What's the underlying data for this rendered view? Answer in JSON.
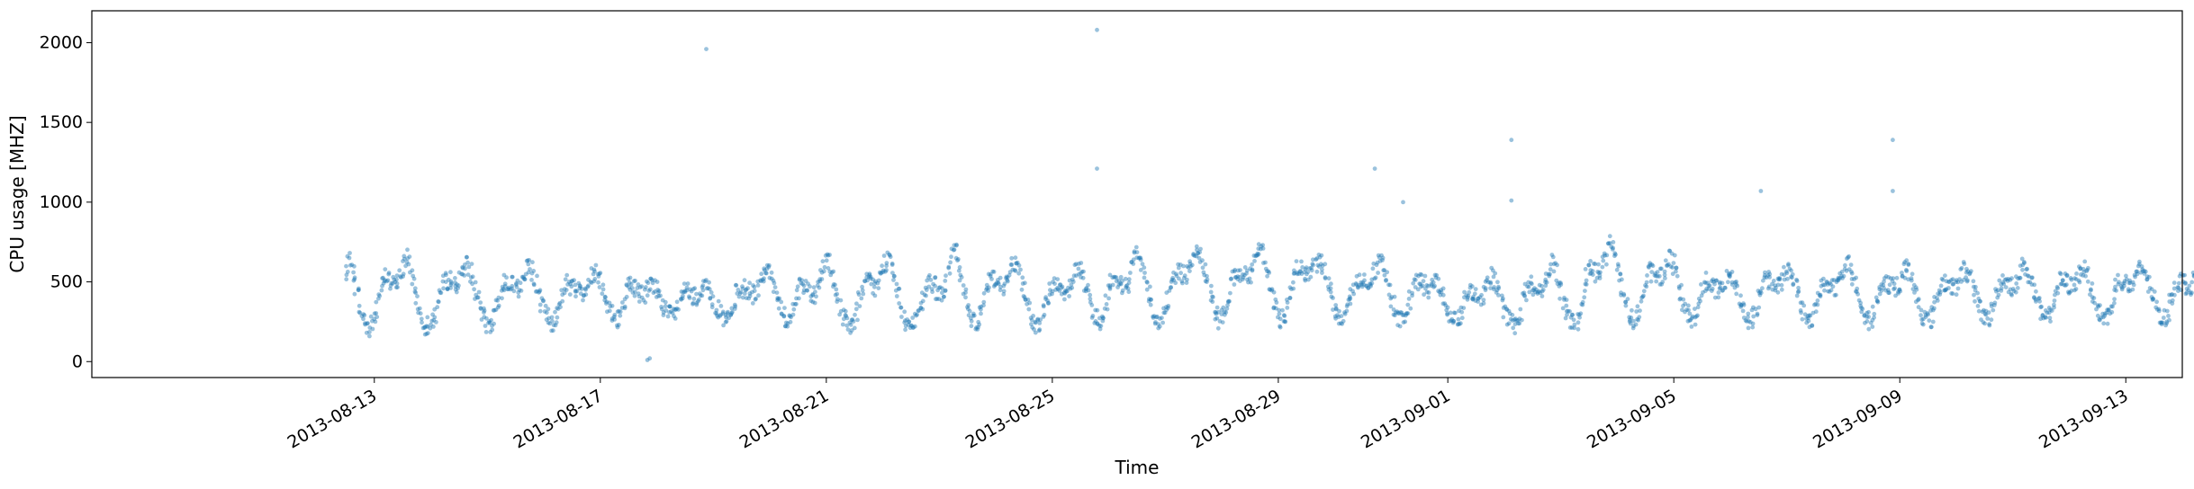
{
  "chart_data": {
    "type": "scatter",
    "title": "",
    "xlabel": "Time",
    "ylabel": "CPU usage [MHZ]",
    "xlim": [
      "2013-08-08",
      "2013-09-14"
    ],
    "ylim": [
      -100,
      2200
    ],
    "x_ticks": [
      "2013-08-13",
      "2013-08-17",
      "2013-08-21",
      "2013-08-25",
      "2013-08-29",
      "2013-09-01",
      "2013-09-05",
      "2013-09-09",
      "2013-09-13"
    ],
    "y_ticks": [
      0,
      500,
      1000,
      1500,
      2000
    ],
    "grid": false,
    "legend": "none",
    "marker_color": "#1f77b4",
    "marker_alpha": 0.45,
    "series_sampling": "hourly",
    "series_start": "2013-08-12 12:00",
    "series": [
      {
        "values": [
          540,
          600,
          660,
          560,
          480,
          420,
          330,
          290,
          250,
          230,
          210,
          240,
          280,
          340,
          420,
          500,
          530,
          520,
          500,
          490,
          480,
          470,
          520,
          560,
          580,
          620,
          650,
          600,
          540,
          480,
          400,
          340,
          290,
          260,
          230,
          220,
          230,
          260,
          300,
          370,
          430,
          480,
          500,
          510,
          520,
          500,
          490,
          480,
          500,
          540,
          590,
          620,
          600,
          560,
          500,
          440,
          380,
          330,
          290,
          260,
          240,
          230,
          240,
          280,
          330,
          390,
          450,
          500,
          520,
          510,
          500,
          480,
          470,
          450,
          470,
          510,
          560,
          600,
          590,
          570,
          540,
          480,
          420,
          370,
          330,
          300,
          270,
          250,
          240,
          270,
          310,
          360,
          420,
          470,
          490,
          480,
          470,
          460,
          450,
          440,
          440,
          440,
          460,
          490,
          530,
          560,
          570,
          550,
          520,
          480,
          420,
          370,
          330,
          300,
          280,
          270,
          290,
          320,
          380,
          440,
          480,
          490,
          480,
          460,
          440,
          430,
          420,
          420,
          450,
          470,
          480,
          470,
          450,
          420,
          380,
          350,
          320,
          300,
          290,
          290,
          300,
          340,
          390,
          430,
          440,
          430,
          410,
          400,
          400,
          380,
          380,
          420,
          460,
          500,
          480,
          440,
          400,
          360,
          320,
          290,
          270,
          260,
          260,
          270,
          300,
          360,
          420,
          460,
          470,
          460,
          450,
          440,
          430,
          420,
          430,
          470,
          520,
          550,
          580,
          590,
          560,
          520,
          470,
          420,
          370,
          320,
          290,
          270,
          260,
          280,
          320,
          370,
          420,
          460,
          480,
          470,
          450,
          440,
          430,
          420,
          440,
          490,
          550,
          600,
          620,
          610,
          570,
          510,
          450,
          390,
          330,
          290,
          260,
          240,
          230,
          240,
          270,
          320,
          380,
          440,
          480,
          500,
          500,
          490,
          480,
          470,
          480,
          520,
          570,
          620,
          640,
          620,
          580,
          520,
          460,
          400,
          340,
          290,
          250,
          230,
          220,
          220,
          240,
          270,
          320,
          380,
          440,
          490,
          500,
          490,
          470,
          450,
          440,
          430,
          450,
          490,
          560,
          650,
          720,
          690,
          620,
          550,
          480,
          410,
          350,
          300,
          270,
          250,
          260,
          290,
          340,
          400,
          460,
          500,
          520,
          520,
          510,
          500,
          490,
          480,
          490,
          520,
          560,
          600,
          610,
          600,
          560,
          510,
          450,
          390,
          330,
          290,
          260,
          240,
          240,
          260,
          300,
          350,
          410,
          450,
          470,
          470,
          460,
          450,
          440,
          430,
          440,
          470,
          510,
          550,
          580,
          590,
          570,
          530,
          480,
          430,
          380,
          330,
          290,
          270,
          260,
          270,
          310,
          370,
          440,
          500,
          520,
          510,
          500,
          490,
          480,
          470,
          490,
          540,
          600,
          660,
          700,
          680,
          630,
          560,
          490,
          420,
          360,
          310,
          280,
          260,
          260,
          280,
          330,
          390,
          460,
          520,
          550,
          560,
          550,
          540,
          540,
          550,
          570,
          610,
          650,
          680,
          690,
          660,
          610,
          550,
          480,
          420,
          360,
          310,
          280,
          260,
          270,
          300,
          350,
          410,
          470,
          520,
          550,
          560,
          560,
          550,
          540,
          530,
          540,
          580,
          630,
          690,
          720,
          700,
          650,
          580,
          510,
          440,
          380,
          330,
          290,
          270,
          270,
          300,
          350,
          420,
          490,
          540,
          570,
          580,
          570,
          560,
          550,
          550,
          560,
          590,
          620,
          640,
          640,
          610,
          560,
          500,
          440,
          380,
          330,
          290,
          270,
          260,
          270,
          300,
          350,
          410,
          460,
          500,
          520,
          520,
          510,
          500,
          490,
          500,
          530,
          570,
          600,
          620,
          610,
          570,
          520,
          460,
          400,
          350,
          300,
          270,
          250,
          250,
          270,
          320,
          380,
          440,
          480,
          500,
          500,
          490,
          480,
          470,
          460,
          470,
          490,
          500,
          480,
          450,
          410,
          370,
          330,
          300,
          280,
          270,
          270,
          290,
          330,
          380,
          420,
          440,
          450,
          440,
          430,
          420,
          410,
          420,
          450,
          490,
          520,
          530,
          510,
          470,
          420,
          370,
          330,
          290,
          260,
          240,
          230,
          240,
          270,
          320,
          380,
          440,
          470,
          480,
          470,
          460,
          450,
          440,
          450,
          480,
          530,
          580,
          610,
          600,
          560,
          500,
          440,
          380,
          330,
          290,
          260,
          240,
          240,
          260,
          310,
          380,
          460,
          530,
          570,
          580,
          570,
          560,
          550,
          560,
          600,
          660,
          720,
          760,
          740,
          680,
          610,
          530,
          460,
          400,
          350,
          310,
          280,
          270,
          280,
          310,
          370,
          440,
          500,
          540,
          560,
          560,
          550,
          540,
          530,
          540,
          570,
          610,
          640,
          640,
          610,
          560,
          500,
          440,
          380,
          330,
          300,
          280,
          270,
          290,
          330,
          390,
          450,
          490,
          500,
          490,
          480,
          460,
          450,
          440,
          450,
          480,
          520,
          550,
          560,
          540,
          500,
          450,
          400,
          350,
          310,
          280,
          270,
          270,
          290,
          330,
          390,
          450,
          490,
          510,
          510,
          500,
          490,
          480,
          470,
          480,
          510,
          540,
          570,
          580,
          560,
          520,
          470,
          410,
          360,
          320,
          290,
          270,
          270,
          280,
          320,
          380,
          440,
          480,
          500,
          500,
          490,
          480,
          470,
          460,
          470,
          500,
          540,
          580,
          600,
          580,
          540,
          490,
          430,
          380,
          330,
          290,
          270,
          260,
          270,
          300,
          350,
          410,
          460,
          490,
          500,
          490,
          480,
          470,
          460,
          470,
          500,
          540,
          580,
          590,
          570,
          530,
          480,
          420,
          370,
          320,
          290,
          270,
          260,
          270,
          300,
          350,
          410,
          460,
          490,
          500,
          490,
          480,
          470,
          460,
          470,
          500,
          540,
          570,
          580,
          560,
          520,
          470,
          420,
          370,
          330,
          300,
          280,
          270,
          280,
          310,
          360,
          420,
          470,
          500,
          510,
          500,
          490,
          480,
          470,
          480,
          520,
          560,
          590,
          600,
          580,
          540,
          490,
          440,
          390,
          340,
          300,
          280,
          270,
          280,
          310,
          360,
          420,
          470,
          500,
          510,
          500,
          490,
          480,
          470,
          480,
          510,
          550,
          580,
          590,
          570,
          530,
          480,
          430,
          380,
          340,
          300,
          280,
          270,
          280,
          310,
          360,
          420,
          470,
          500,
          510,
          500,
          490,
          480,
          470,
          480,
          510,
          550,
          580,
          590,
          570,
          530,
          480,
          430,
          380,
          340,
          300,
          280,
          270,
          280,
          310,
          360,
          420,
          470,
          500,
          510,
          500,
          490,
          480,
          470,
          480,
          510,
          550,
          580,
          590,
          570,
          530,
          480,
          430,
          380,
          340,
          300,
          280,
          270,
          280,
          310,
          360,
          420,
          470,
          500,
          510,
          500
        ]
      }
    ],
    "outliers": [
      {
        "x": "2013-08-18 21:00",
        "y": 1960
      },
      {
        "x": "2013-08-25 19:00",
        "y": 2080
      },
      {
        "x": "2013-08-25 19:00",
        "y": 1210
      },
      {
        "x": "2013-08-30 17:00",
        "y": 1210
      },
      {
        "x": "2013-09-02 03:00",
        "y": 1390
      },
      {
        "x": "2013-09-02 03:00",
        "y": 1010
      },
      {
        "x": "2013-09-08 21:00",
        "y": 1390
      },
      {
        "x": "2013-09-08 21:00",
        "y": 1070
      },
      {
        "x": "2013-09-06 13:00",
        "y": 1070
      },
      {
        "x": "2013-08-31 05:00",
        "y": 1000
      },
      {
        "x": "2013-08-17 20:00",
        "y": 10
      },
      {
        "x": "2013-08-17 21:00",
        "y": 20
      }
    ]
  }
}
